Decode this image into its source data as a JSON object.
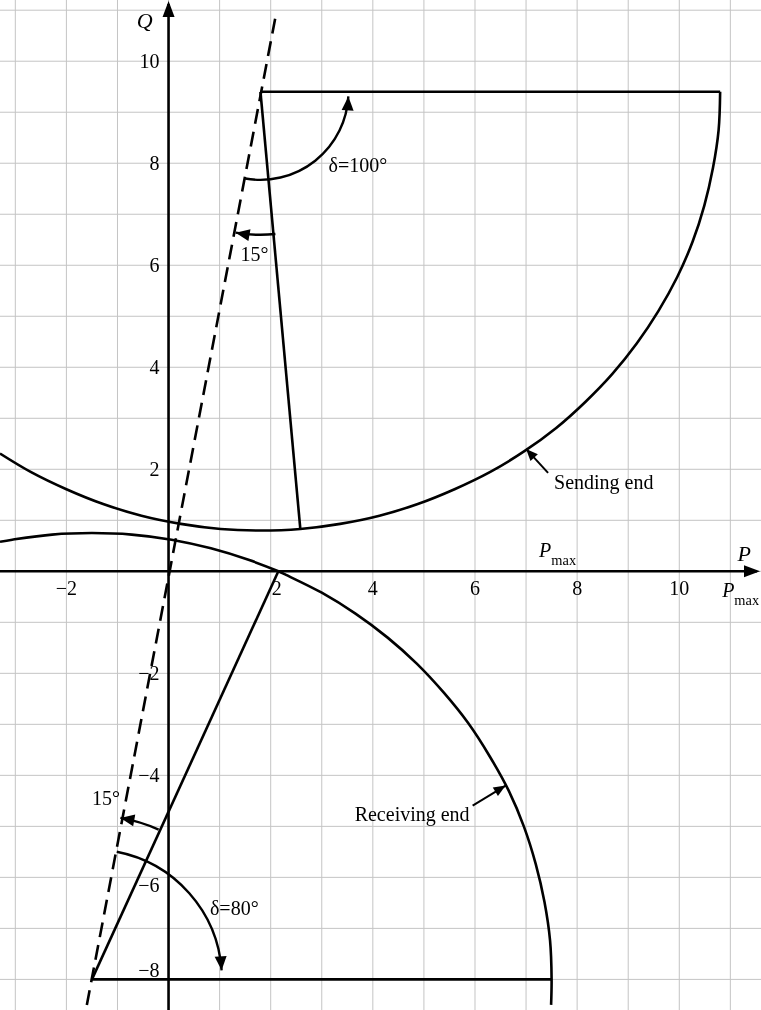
{
  "chart_data": {
    "type": "line",
    "xlabel": "P",
    "ylabel": "Q",
    "xlim": [
      -3.3,
      11.6
    ],
    "ylim": [
      -8.6,
      11.2
    ],
    "xticks": [
      {
        "value": -3,
        "label": null
      },
      -2,
      {
        "value": -1,
        "label": null
      },
      {
        "value": 0,
        "label": null
      },
      {
        "value": 1,
        "label": null
      },
      2,
      {
        "value": 3,
        "label": null
      },
      4,
      {
        "value": 5,
        "label": null
      },
      6,
      {
        "value": 7,
        "label": null
      },
      8,
      {
        "value": 9,
        "label": null
      },
      10,
      {
        "value": 11,
        "label": null
      }
    ],
    "yticks": [
      -8,
      {
        "value": -7,
        "label": null
      },
      -6,
      {
        "value": -5,
        "label": null
      },
      -4,
      {
        "value": -3,
        "label": null
      },
      -2,
      {
        "value": -1,
        "label": null
      },
      {
        "value": 0,
        "label": null
      },
      {
        "value": 1,
        "label": null
      },
      2,
      {
        "value": 3,
        "label": null
      },
      4,
      {
        "value": 5,
        "label": null
      },
      6,
      {
        "value": 7,
        "label": null
      },
      8,
      {
        "value": 9,
        "label": null
      },
      10,
      {
        "value": 11,
        "label": null
      }
    ],
    "grid": true,
    "line_style": "solid",
    "series": [
      {
        "color": "#000000",
        "x": [
          -3.3,
          -2.7,
          -2.0,
          -1.28,
          -0.53,
          0.24,
          1.02,
          1.8,
          2.58,
          3.36,
          4.13,
          4.88,
          5.6,
          6.3,
          6.96,
          7.59,
          8.16,
          8.69,
          9.17,
          9.59,
          9.96,
          10.26,
          10.49,
          10.66,
          10.77,
          10.8
        ],
        "values": [
          2.31,
          1.95,
          1.61,
          1.32,
          1.09,
          0.93,
          0.83,
          0.8,
          0.83,
          0.93,
          1.09,
          1.32,
          1.61,
          1.95,
          2.35,
          2.81,
          3.32,
          3.87,
          4.47,
          5.1,
          5.77,
          6.46,
          7.17,
          7.91,
          8.65,
          9.4
        ]
      },
      {
        "color": "#000000",
        "x": [
          1.8,
          10.8
        ],
        "values": [
          9.4,
          9.4
        ]
      },
      {
        "color": "#000000",
        "x": [
          1.8,
          2.58
        ],
        "values": [
          9.4,
          0.83
        ]
      },
      {
        "color": "#000000",
        "x": [
          -3.3,
          -3.06,
          -2.28,
          -1.5,
          -0.72,
          0.06,
          0.83,
          1.58,
          2.15,
          2.3,
          3.0,
          3.66,
          4.29,
          4.86,
          5.39,
          5.87,
          6.29,
          6.66,
          6.96,
          7.19,
          7.36,
          7.47,
          7.5,
          7.49
        ],
        "values": [
          0.58,
          0.62,
          0.72,
          0.75,
          0.72,
          0.62,
          0.45,
          0.22,
          0,
          -0.07,
          -0.42,
          -0.83,
          -1.3,
          -1.81,
          -2.38,
          -2.98,
          -3.63,
          -4.3,
          -5.01,
          -5.74,
          -6.48,
          -7.24,
          -8.0,
          -8.5
        ]
      },
      {
        "color": "#000000",
        "x": [
          -1.5,
          7.5
        ],
        "values": [
          -8.0,
          -8.0
        ]
      },
      {
        "color": "#000000",
        "x": [
          -1.5,
          2.15
        ],
        "values": [
          -8.0,
          0
        ]
      },
      {
        "color": "#000000",
        "line_style": "dashed",
        "x": [
          -1.6,
          2.1
        ],
        "values": [
          -8.5,
          10.9
        ]
      }
    ],
    "annotations": [
      "δ=100°",
      "15°",
      {
        "text": "Sending end",
        "x": 7.0,
        "y": 2.4
      },
      "P$_{max}$",
      "P$_{max}$",
      {
        "text": "Receiving end",
        "x": 6.6,
        "y": -4.2
      },
      "15°",
      "δ=80°"
    ]
  }
}
